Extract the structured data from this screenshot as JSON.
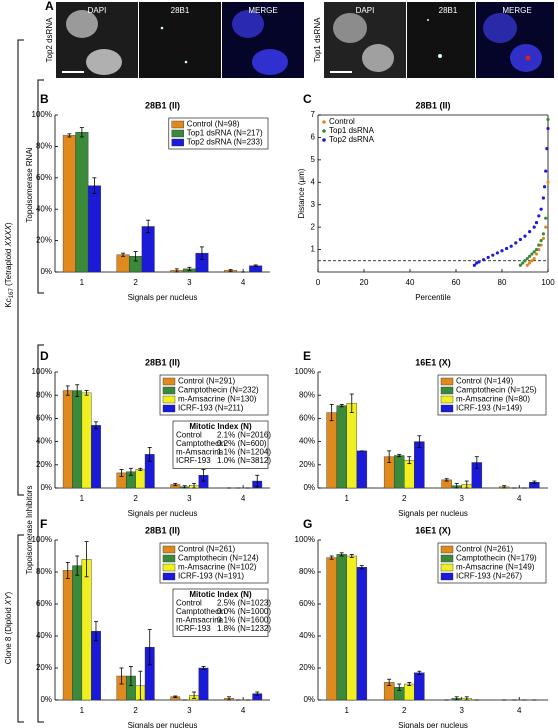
{
  "figure": {
    "side_labels": {
      "rnai": "Topoisomerase RNAi",
      "inhibitors": "Topoisomerase Inhibitors",
      "kc": {
        "name": "Kc",
        "sub": "167",
        "mid": " (Tetraploid ",
        "italic": "XXXX",
        "end": ")"
      },
      "clone": {
        "name": "Clone 8 (Diploid ",
        "italic": "XY",
        "end": ")"
      }
    },
    "panel_a": {
      "letter": "A",
      "groups": [
        {
          "label": "Top2 dsRNA",
          "channels": [
            "DAPI",
            "28B1",
            "MERGE"
          ]
        },
        {
          "label": "Top1 dsRNA",
          "channels": [
            "DAPI",
            "28B1",
            "MERGE"
          ]
        }
      ]
    }
  },
  "chart_data": [
    {
      "type": "bar",
      "panel": "B",
      "title": "28B1 (II)",
      "xlabel": "Signals per nucleus",
      "categories": [
        "1",
        "2",
        "3",
        "4"
      ],
      "legend": "upper right",
      "ylim": [
        0,
        100
      ],
      "yticks": [
        {
          "value": 0,
          "label": "0%"
        },
        {
          "value": 20,
          "label": "20%"
        },
        {
          "value": 40,
          "label": "40%"
        },
        {
          "value": 60,
          "label": "60%"
        },
        {
          "value": 80,
          "label": "80%"
        },
        {
          "value": 100,
          "label": "100%"
        }
      ],
      "series": [
        {
          "name": "Control (N=98)",
          "color": "#e08a1e",
          "values": [
            87,
            11,
            1,
            1
          ],
          "errors": [
            1,
            1,
            1,
            0.5
          ]
        },
        {
          "name": "Top1 dsRNA (N=217)",
          "color": "#3a8a3a",
          "values": [
            89,
            10,
            2,
            0
          ],
          "errors": [
            3,
            3,
            1,
            0
          ]
        },
        {
          "name": "Top2 dsRNA (N=233)",
          "color": "#1a1ad8",
          "values": [
            55,
            29,
            12,
            4
          ],
          "errors": [
            5,
            4,
            4,
            0.5
          ]
        }
      ]
    },
    {
      "type": "scatter",
      "panel": "C",
      "title": "28B1 (II)",
      "xlabel": "Percentile",
      "ylabel": "Distance (μm)",
      "legend": "upper left",
      "xlim": [
        0,
        100
      ],
      "xticks": [
        0,
        20,
        40,
        60,
        80,
        100
      ],
      "ylim": [
        0,
        7
      ],
      "yticks": [
        1,
        2,
        3,
        4,
        5,
        6,
        7
      ],
      "threshold": 0.5,
      "series": [
        {
          "name": "Control",
          "color": "#e08a1e",
          "x": [
            91,
            92,
            93,
            94,
            95,
            96,
            97,
            98,
            99,
            100
          ],
          "values": [
            0.3,
            0.4,
            0.5,
            0.6,
            0.8,
            1.0,
            1.2,
            1.5,
            2.0,
            4.0
          ]
        },
        {
          "name": "Top1 dsRNA",
          "color": "#3a8a3a",
          "x": [
            88,
            89,
            90,
            91,
            92,
            93,
            94,
            95,
            96,
            97,
            98,
            99,
            100
          ],
          "values": [
            0.3,
            0.4,
            0.5,
            0.6,
            0.7,
            0.8,
            0.9,
            1.0,
            1.2,
            1.4,
            1.7,
            2.4,
            6.8
          ]
        },
        {
          "name": "Top2 dsRNA",
          "color": "#1a1ad8",
          "x": [
            68,
            69,
            70,
            72,
            74,
            76,
            78,
            80,
            82,
            84,
            86,
            88,
            90,
            92,
            94,
            95,
            96,
            97,
            98,
            98.5,
            99,
            99.5,
            100
          ],
          "values": [
            0.3,
            0.4,
            0.45,
            0.55,
            0.65,
            0.75,
            0.85,
            0.95,
            1.05,
            1.15,
            1.3,
            1.45,
            1.6,
            1.8,
            2.0,
            2.2,
            2.5,
            2.8,
            3.3,
            3.8,
            4.5,
            5.5,
            6.4
          ]
        }
      ]
    },
    {
      "type": "bar",
      "panel": "D",
      "title": "28B1 (II)",
      "xlabel": "Signals per nucleus",
      "categories": [
        "1",
        "2",
        "3",
        "4"
      ],
      "legend": "upper right",
      "ylim": [
        0,
        100
      ],
      "yticks": [
        {
          "value": 0,
          "label": "0%"
        },
        {
          "value": 20,
          "label": "20%"
        },
        {
          "value": 40,
          "label": "40%"
        },
        {
          "value": 60,
          "label": "60%"
        },
        {
          "value": 80,
          "label": "80%"
        },
        {
          "value": 100,
          "label": "100%"
        }
      ],
      "series": [
        {
          "name": "Control (N=291)",
          "color": "#e08a1e",
          "values": [
            84,
            13,
            3,
            0
          ],
          "errors": [
            4,
            3,
            1,
            0
          ]
        },
        {
          "name": "Camptothecin (N=232)",
          "color": "#3a8a3a",
          "values": [
            84,
            14,
            1,
            0
          ],
          "errors": [
            5,
            3,
            1,
            0
          ]
        },
        {
          "name": "m-Amsacrine (N=130)",
          "color": "#f0f020",
          "values": [
            82,
            16,
            2,
            0
          ],
          "errors": [
            2,
            1,
            2,
            0
          ]
        },
        {
          "name": "ICRF-193 (N=211)",
          "color": "#1a1ad8",
          "values": [
            54,
            29,
            11,
            6
          ],
          "errors": [
            3,
            6,
            5,
            5
          ]
        }
      ],
      "inset": {
        "title": "Mitotic Index (N)",
        "rows": [
          [
            "Control",
            "2.1% (N=2016)"
          ],
          [
            "Camptothecin",
            "0.2% (N=600)"
          ],
          [
            "m-Amsacrine",
            "1.1% (N=1204)"
          ],
          [
            "ICRF-193",
            "1.0% (N=3812)"
          ]
        ]
      }
    },
    {
      "type": "bar",
      "panel": "E",
      "title": "16E1 (X)",
      "xlabel": "Signals per nucleus",
      "categories": [
        "1",
        "2",
        "3",
        "4"
      ],
      "legend": "upper right",
      "ylim": [
        0,
        100
      ],
      "yticks": [
        {
          "value": 0,
          "label": "0%"
        },
        {
          "value": 20,
          "label": "20%"
        },
        {
          "value": 40,
          "label": "40%"
        },
        {
          "value": 60,
          "label": "60%"
        },
        {
          "value": 80,
          "label": "80%"
        },
        {
          "value": 100,
          "label": "100%"
        }
      ],
      "series": [
        {
          "name": "Control (N=149)",
          "color": "#e08a1e",
          "values": [
            65,
            27,
            7,
            1
          ],
          "errors": [
            7,
            5,
            1,
            1
          ]
        },
        {
          "name": "Camptothecin (N=125)",
          "color": "#3a8a3a",
          "values": [
            71,
            28,
            2,
            0
          ],
          "errors": [
            1,
            1,
            2,
            0
          ]
        },
        {
          "name": "m-Amsacrine (N=80)",
          "color": "#f0f020",
          "values": [
            73,
            24,
            3,
            0
          ],
          "errors": [
            8,
            3,
            3,
            0
          ]
        },
        {
          "name": "ICRF-193 (N=149)",
          "color": "#1a1ad8",
          "values": [
            32,
            40,
            22,
            5
          ],
          "errors": [
            0,
            5,
            5,
            1
          ]
        }
      ]
    },
    {
      "type": "bar",
      "panel": "F",
      "title": "28B1 (II)",
      "xlabel": "Signals per nucleus",
      "categories": [
        "1",
        "2",
        "3",
        "4"
      ],
      "legend": "upper right",
      "ylim": [
        0,
        100
      ],
      "yticks": [
        {
          "value": 0,
          "label": "0%"
        },
        {
          "value": 20,
          "label": "20%"
        },
        {
          "value": 40,
          "label": "40%"
        },
        {
          "value": 60,
          "label": "60%"
        },
        {
          "value": 80,
          "label": "80%"
        },
        {
          "value": 100,
          "label": "100%"
        }
      ],
      "series": [
        {
          "name": "Control (N=261)",
          "color": "#e08a1e",
          "values": [
            81,
            15,
            2,
            1
          ],
          "errors": [
            5,
            5,
            0.5,
            1
          ]
        },
        {
          "name": "Camptothecin (N=124)",
          "color": "#3a8a3a",
          "values": [
            84,
            15,
            0,
            0
          ],
          "errors": [
            6,
            6,
            0,
            0
          ]
        },
        {
          "name": "m-Amsacrine (N=102)",
          "color": "#f0f020",
          "values": [
            88,
            9,
            3,
            0
          ],
          "errors": [
            11,
            9,
            2,
            0
          ]
        },
        {
          "name": "ICRF-193 (N=191)",
          "color": "#1a1ad8",
          "values": [
            43,
            33,
            20,
            4
          ],
          "errors": [
            6,
            11,
            1,
            1
          ]
        }
      ],
      "inset": {
        "title": "Mitotic Index (N)",
        "rows": [
          [
            "Control",
            "2.5% (N=1023)"
          ],
          [
            "Camptothecin",
            "0.0% (N=1000)"
          ],
          [
            "m-Amsacrine",
            "0.1% (N=1600)"
          ],
          [
            "ICRF-193",
            "1.8% (N=1232)"
          ]
        ]
      }
    },
    {
      "type": "bar",
      "panel": "G",
      "title": "16E1 (X)",
      "xlabel": "Signals per nucleus",
      "categories": [
        "1",
        "2",
        "3",
        "4"
      ],
      "legend": "upper right",
      "ylim": [
        0,
        100
      ],
      "yticks": [
        {
          "value": 0,
          "label": "0%"
        },
        {
          "value": 20,
          "label": "20%"
        },
        {
          "value": 40,
          "label": "40%"
        },
        {
          "value": 60,
          "label": "60%"
        },
        {
          "value": 80,
          "label": "80%"
        },
        {
          "value": 100,
          "label": "100%"
        }
      ],
      "series": [
        {
          "name": "Control (N=261)",
          "color": "#e08a1e",
          "values": [
            89,
            11,
            0,
            0
          ],
          "errors": [
            1,
            2,
            0,
            0
          ]
        },
        {
          "name": "Camptothecin (N=179)",
          "color": "#3a8a3a",
          "values": [
            91,
            8,
            1,
            0
          ],
          "errors": [
            1,
            2,
            1,
            0
          ]
        },
        {
          "name": "m-Amsacrine (N=149)",
          "color": "#f0f020",
          "values": [
            90,
            10,
            1,
            0
          ],
          "errors": [
            1,
            1,
            1,
            0
          ]
        },
        {
          "name": "ICRF-193 (N=267)",
          "color": "#1a1ad8",
          "values": [
            83,
            17,
            0,
            0
          ],
          "errors": [
            1,
            1,
            0,
            0
          ]
        }
      ]
    }
  ]
}
